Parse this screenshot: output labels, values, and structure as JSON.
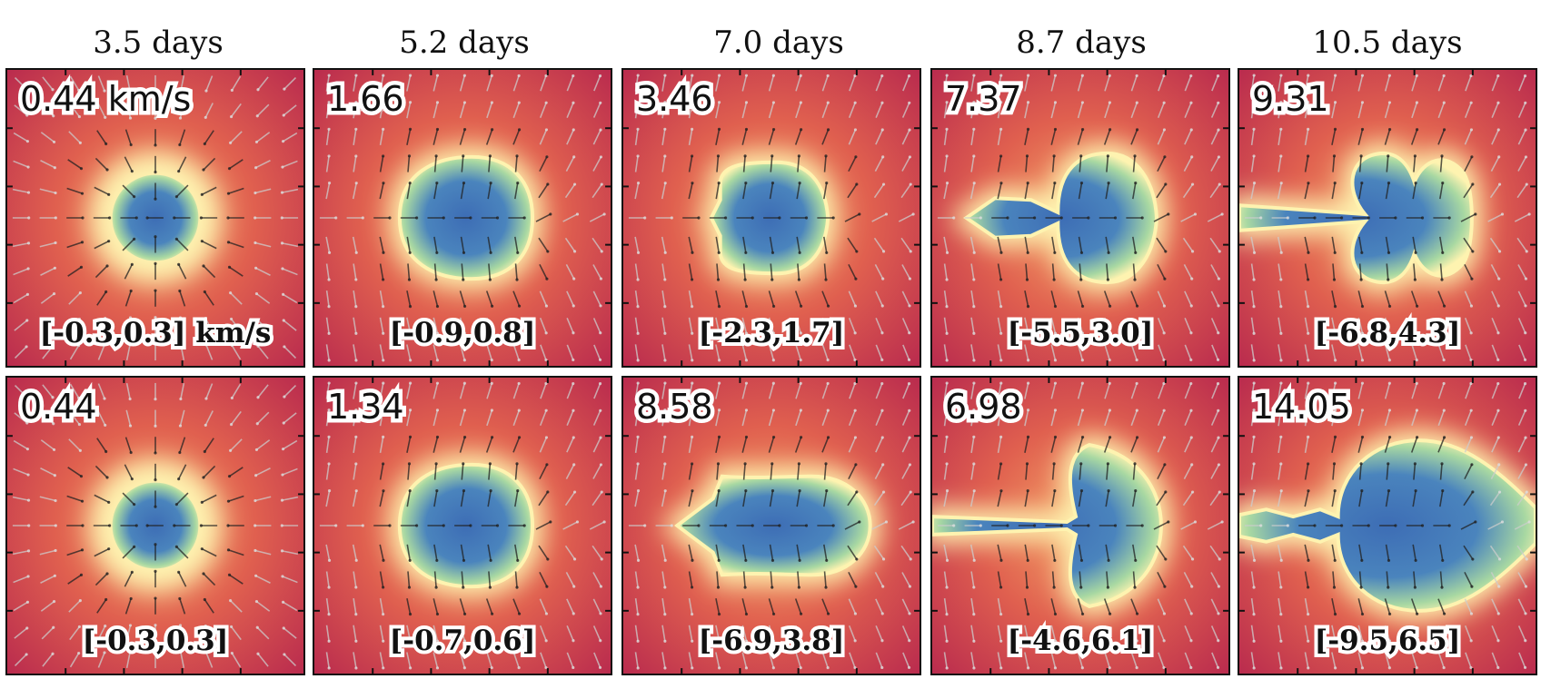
{
  "columns": [
    {
      "title": "3.5 days"
    },
    {
      "title": "5.2 days"
    },
    {
      "title": "7.0 days"
    },
    {
      "title": "8.7 days"
    },
    {
      "title": "10.5 days"
    }
  ],
  "rows": [
    {
      "panels": [
        {
          "speed": "0.44 km/s",
          "range": "[-0.3,0.3] km/s",
          "shape": "sphere",
          "size": 0.55
        },
        {
          "speed": "1.66",
          "range": "[-0.9,0.8]",
          "shape": "blob",
          "size": 0.85
        },
        {
          "speed": "3.46",
          "range": "[-2.3,1.7]",
          "shape": "capsule",
          "size": 1.0
        },
        {
          "speed": "7.37",
          "range": "[-5.5,3.0]",
          "shape": "mushroom",
          "size": 1.0
        },
        {
          "speed": "9.31",
          "range": "[-6.8,4.3]",
          "shape": "mushroom2",
          "size": 1.0
        }
      ]
    },
    {
      "panels": [
        {
          "speed": "0.44",
          "range": "[-0.3,0.3]",
          "shape": "sphere",
          "size": 0.55
        },
        {
          "speed": "1.34",
          "range": "[-0.7,0.6]",
          "shape": "blob",
          "size": 0.8
        },
        {
          "speed": "8.58",
          "range": "[-6.9,3.8]",
          "shape": "bullet",
          "size": 1.0
        },
        {
          "speed": "6.98",
          "range": "[-4.6,6.1]",
          "shape": "crescent",
          "size": 1.0
        },
        {
          "speed": "14.05",
          "range": "[-9.5,6.5]",
          "shape": "turbulent",
          "size": 1.0
        }
      ]
    }
  ],
  "colors": {
    "background": "#b5254e",
    "warm": "#f29a5c",
    "glow": "#fef3b0",
    "inner": "#a8d8a2",
    "core": "#3d6db5"
  }
}
